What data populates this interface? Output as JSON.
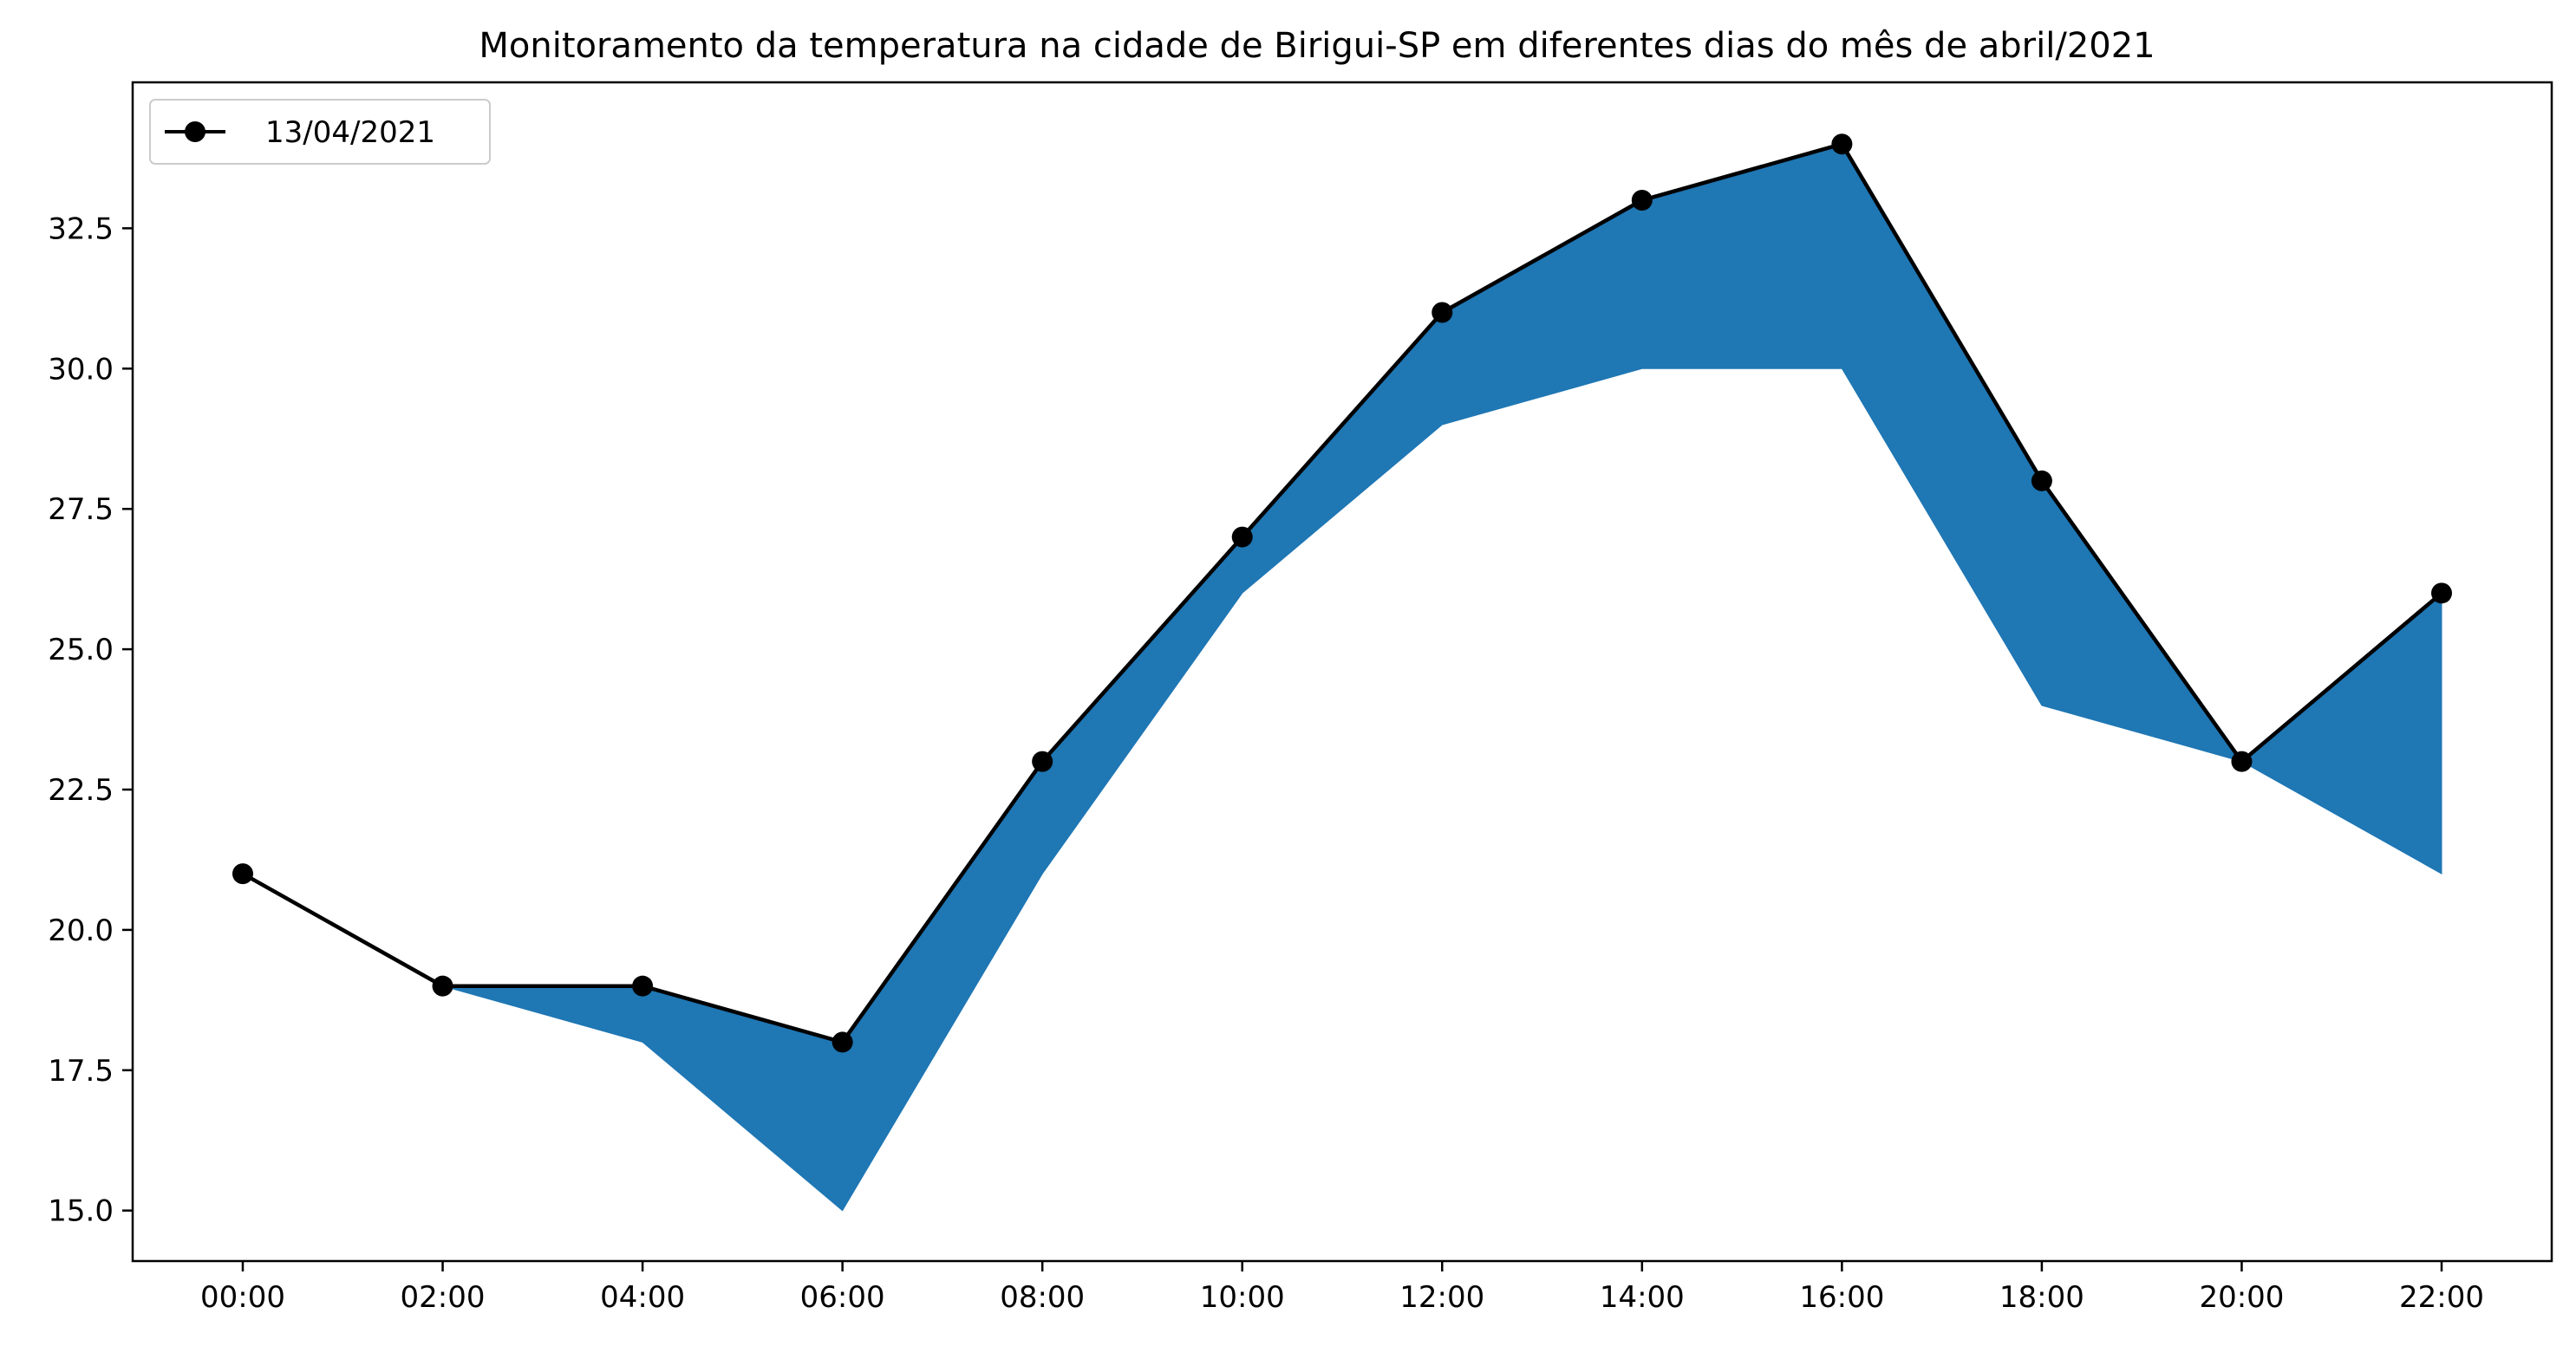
{
  "chart_data": {
    "type": "line",
    "title": "Monitoramento da temperatura na cidade de Birigui-SP em diferentes dias do mês de abril/2021",
    "xlabel": "",
    "ylabel": "",
    "categories": [
      "00:00",
      "02:00",
      "04:00",
      "06:00",
      "08:00",
      "10:00",
      "12:00",
      "14:00",
      "16:00",
      "18:00",
      "20:00",
      "22:00"
    ],
    "series": [
      {
        "name": "13/04/2021",
        "values": [
          21,
          19,
          19,
          18,
          23,
          27,
          31,
          33,
          34,
          28,
          23,
          26
        ],
        "color": "#000000",
        "marker": "circle"
      }
    ],
    "fill_between": {
      "from_index": 1,
      "to_index": 11,
      "lower": [
        19,
        18,
        15,
        21,
        26,
        29,
        30,
        30,
        24,
        23,
        21
      ],
      "color": "#1f77b4"
    },
    "ylim": [
      14.1,
      35.1
    ],
    "yticks": [
      "15.0",
      "17.5",
      "20.0",
      "22.5",
      "25.0",
      "27.5",
      "30.0",
      "32.5"
    ],
    "ytick_values": [
      15.0,
      17.5,
      20.0,
      22.5,
      25.0,
      27.5,
      30.0,
      32.5
    ],
    "grid": false,
    "legend_position": "upper-left"
  }
}
